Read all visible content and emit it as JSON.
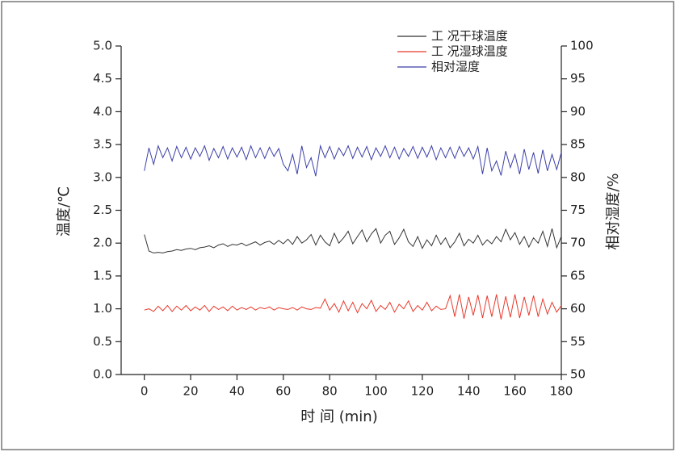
{
  "chart_data": {
    "type": "line",
    "xlabel": "时 间 (min)",
    "ylabel": "温度/℃",
    "y2label": "相对湿度/%",
    "x": [
      0,
      2,
      4,
      6,
      8,
      10,
      12,
      14,
      16,
      18,
      20,
      22,
      24,
      26,
      28,
      30,
      32,
      34,
      36,
      38,
      40,
      42,
      44,
      46,
      48,
      50,
      52,
      54,
      56,
      58,
      60,
      62,
      64,
      66,
      68,
      70,
      72,
      74,
      76,
      78,
      80,
      82,
      84,
      86,
      88,
      90,
      92,
      94,
      96,
      98,
      100,
      102,
      104,
      106,
      108,
      110,
      112,
      114,
      116,
      118,
      120,
      122,
      124,
      126,
      128,
      130,
      132,
      134,
      136,
      138,
      140,
      142,
      144,
      146,
      148,
      150,
      152,
      154,
      156,
      158,
      160,
      162,
      164,
      166,
      168,
      170,
      172,
      174,
      176,
      178,
      180
    ],
    "series": [
      {
        "name": "工 况干球温度",
        "color": "#333333",
        "values": [
          2.13,
          1.88,
          1.85,
          1.86,
          1.85,
          1.87,
          1.88,
          1.9,
          1.89,
          1.91,
          1.92,
          1.9,
          1.93,
          1.94,
          1.96,
          1.93,
          1.97,
          1.99,
          1.95,
          1.98,
          1.97,
          2.0,
          1.96,
          1.99,
          2.02,
          1.97,
          2.01,
          2.03,
          1.98,
          2.04,
          1.99,
          2.06,
          1.98,
          2.1,
          2.0,
          2.05,
          2.13,
          1.97,
          2.12,
          2.02,
          1.96,
          2.15,
          2.0,
          2.08,
          2.18,
          1.99,
          2.1,
          2.2,
          2.02,
          2.14,
          2.22,
          2.0,
          2.12,
          2.18,
          1.98,
          2.08,
          2.21,
          2.02,
          1.95,
          2.1,
          1.92,
          2.05,
          1.96,
          2.12,
          1.98,
          2.08,
          1.93,
          2.02,
          2.15,
          1.96,
          2.06,
          2.0,
          2.12,
          1.97,
          2.05,
          1.99,
          2.1,
          2.02,
          2.21,
          2.05,
          2.16,
          1.98,
          2.1,
          1.94,
          2.08,
          2.0,
          2.18,
          1.95,
          2.22,
          1.93,
          2.1
        ]
      },
      {
        "name": "工 况湿球温度",
        "color": "#e8392b",
        "values": [
          0.98,
          1.0,
          0.96,
          1.04,
          0.97,
          1.05,
          0.96,
          1.04,
          0.98,
          1.05,
          0.97,
          1.03,
          0.98,
          1.05,
          0.96,
          1.04,
          0.99,
          1.03,
          0.97,
          1.04,
          0.98,
          1.02,
          0.99,
          1.03,
          0.98,
          1.02,
          1.0,
          1.03,
          0.98,
          1.02,
          1.0,
          0.99,
          1.02,
          0.98,
          1.03,
          1.0,
          0.99,
          1.02,
          1.01,
          1.15,
          0.98,
          1.08,
          0.95,
          1.12,
          0.97,
          1.1,
          0.94,
          1.08,
          1.0,
          1.13,
          0.96,
          1.05,
          0.99,
          1.1,
          0.95,
          1.07,
          1.0,
          1.12,
          0.96,
          1.05,
          0.98,
          1.1,
          0.97,
          1.04,
          0.99,
          1.0,
          1.2,
          0.88,
          1.22,
          0.85,
          1.18,
          0.9,
          1.21,
          0.86,
          1.2,
          0.88,
          1.22,
          0.84,
          1.19,
          0.87,
          1.22,
          0.86,
          1.18,
          0.9,
          1.2,
          0.88,
          1.15,
          0.92,
          1.1,
          0.95,
          1.05
        ]
      },
      {
        "name": "相对湿度",
        "color": "#3b3fa8",
        "axis": "y2",
        "values": [
          81,
          84.5,
          82,
          84.8,
          83,
          84.5,
          82.5,
          84.7,
          83,
          84.6,
          82.8,
          84.5,
          83.2,
          84.8,
          82.6,
          84.4,
          83,
          84.7,
          82.8,
          84.5,
          83.1,
          84.6,
          82.7,
          84.8,
          83,
          84.5,
          82.9,
          84.6,
          83.2,
          84.4,
          82,
          81,
          83.5,
          80.5,
          84.8,
          81.5,
          83,
          80.2,
          84.8,
          83,
          84.7,
          82.8,
          84.5,
          83.3,
          84.8,
          82.9,
          84.6,
          83.1,
          84.7,
          82.7,
          84.5,
          83.2,
          84.8,
          83,
          84.6,
          82.8,
          84.4,
          83.2,
          84.7,
          82.9,
          84.6,
          83.1,
          84.8,
          82.7,
          84.5,
          83,
          84.6,
          82.9,
          84.7,
          83.2,
          84.5,
          82.8,
          84.7,
          80.5,
          84.5,
          81,
          82.5,
          80.3,
          84,
          81.5,
          83.5,
          80.5,
          84.3,
          81.2,
          83.8,
          80.6,
          84.2,
          81,
          83.5,
          81.2,
          83.8
        ]
      }
    ],
    "xlim": [
      -10,
      180
    ],
    "xticks": [
      0,
      20,
      40,
      60,
      80,
      100,
      120,
      140,
      160,
      180
    ],
    "ylim": [
      0,
      5
    ],
    "yticks": [
      {
        "value": 0,
        "label": "0.0"
      },
      0.5,
      {
        "value": 1,
        "label": "1.0"
      },
      1.5,
      {
        "value": 2,
        "label": "2.0"
      },
      2.5,
      {
        "value": 3,
        "label": "3.0"
      },
      3.5,
      {
        "value": 4,
        "label": "4.0"
      },
      4.5,
      {
        "value": 5,
        "label": "5.0"
      }
    ],
    "y2lim": [
      50,
      100
    ],
    "y2ticks": [
      50,
      55,
      60,
      65,
      70,
      75,
      80,
      85,
      90,
      95,
      100
    ],
    "legend": "upper right"
  }
}
